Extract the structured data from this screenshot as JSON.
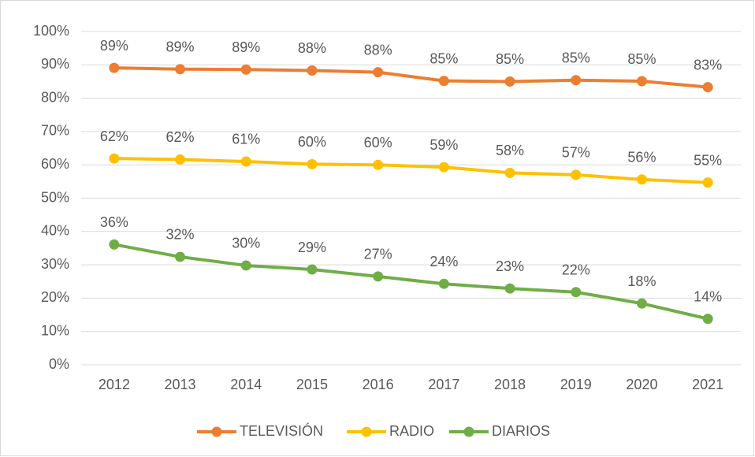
{
  "chart_data": {
    "type": "line",
    "categories": [
      "2012",
      "2013",
      "2014",
      "2015",
      "2016",
      "2017",
      "2018",
      "2019",
      "2020",
      "2021"
    ],
    "series": [
      {
        "name": "TELEVISIÓN",
        "color": "#ed7d31",
        "values": [
          89.1,
          88.7,
          88.6,
          88.3,
          87.8,
          85.2,
          85.0,
          85.4,
          85.1,
          83.3
        ],
        "value_labels": [
          "89%",
          "89%",
          "89%",
          "88%",
          "88%",
          "85%",
          "85%",
          "85%",
          "85%",
          "83%"
        ]
      },
      {
        "name": "RADIO",
        "color": "#ffc000",
        "values": [
          61.9,
          61.6,
          61.0,
          60.2,
          60.0,
          59.3,
          57.6,
          57.0,
          55.6,
          54.7
        ],
        "value_labels": [
          "62%",
          "62%",
          "61%",
          "60%",
          "60%",
          "59%",
          "58%",
          "57%",
          "56%",
          "55%"
        ]
      },
      {
        "name": "DIARIOS",
        "color": "#70ad47",
        "values": [
          36.1,
          32.4,
          29.8,
          28.6,
          26.5,
          24.3,
          22.9,
          21.8,
          18.4,
          13.8
        ],
        "value_labels": [
          "36%",
          "32%",
          "30%",
          "29%",
          "27%",
          "24%",
          "23%",
          "22%",
          "18%",
          "14%"
        ]
      }
    ],
    "ylim": [
      0,
      100
    ],
    "yticks": [
      {
        "value": 0,
        "label": "0%"
      },
      {
        "value": 10,
        "label": "10%"
      },
      {
        "value": 20,
        "label": "20%"
      },
      {
        "value": 30,
        "label": "30%"
      },
      {
        "value": 40,
        "label": "40%"
      },
      {
        "value": 50,
        "label": "50%"
      },
      {
        "value": 60,
        "label": "60%"
      },
      {
        "value": 70,
        "label": "70%"
      },
      {
        "value": 80,
        "label": "80%"
      },
      {
        "value": 90,
        "label": "90%"
      },
      {
        "value": 100,
        "label": "100%"
      }
    ],
    "grid": true,
    "legend": "bottom"
  }
}
